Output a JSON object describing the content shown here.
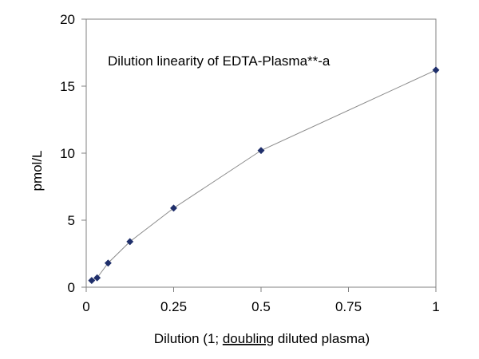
{
  "chart_data": {
    "type": "line",
    "title": "",
    "annotation": "Dilution linearity of EDTA-Plasma**-a",
    "xlabel_parts": [
      "Dilution (1; ",
      "doubling",
      " diluted plasma)"
    ],
    "ylabel": "pmol/L",
    "xlim": [
      0,
      1
    ],
    "ylim": [
      0,
      20
    ],
    "x_ticks": [
      0,
      0.25,
      0.5,
      0.75,
      1
    ],
    "x_tick_labels": [
      "0",
      "0.25",
      "0.5",
      "0.75",
      "1"
    ],
    "y_ticks": [
      0,
      5,
      10,
      15,
      20
    ],
    "y_tick_labels": [
      "0",
      "5",
      "10",
      "15",
      "20"
    ],
    "grid": false,
    "legend": "none",
    "series": [
      {
        "marker": "diamond",
        "color": "#1F2F6B",
        "line_color": "#8A8A8A",
        "x": [
          0.015625,
          0.03125,
          0.0625,
          0.125,
          0.25,
          0.5,
          1
        ],
        "y": [
          0.5,
          0.7,
          1.8,
          3.4,
          5.9,
          10.2,
          16.2
        ]
      }
    ]
  }
}
